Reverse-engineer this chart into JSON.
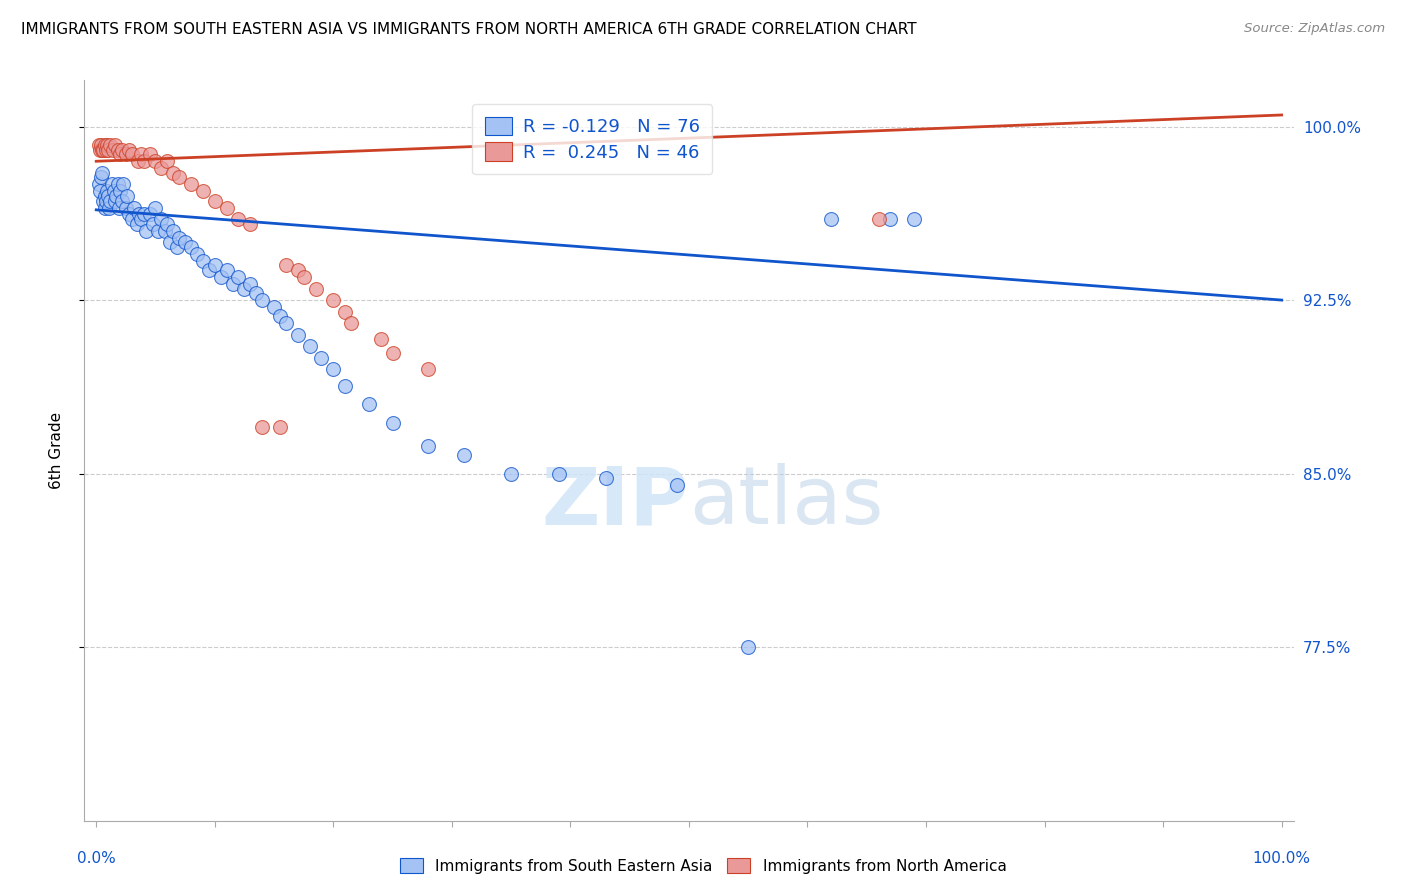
{
  "title": "IMMIGRANTS FROM SOUTH EASTERN ASIA VS IMMIGRANTS FROM NORTH AMERICA 6TH GRADE CORRELATION CHART",
  "source": "Source: ZipAtlas.com",
  "ylabel": "6th Grade",
  "ylim": [
    0.7,
    1.02
  ],
  "xlim": [
    -0.01,
    1.01
  ],
  "blue_color": "#a4c2f4",
  "pink_color": "#ea9999",
  "blue_line_color": "#1155cc",
  "pink_line_color": "#cc4125",
  "grid_color": "#cccccc",
  "watermark_color": "#d0e4f7",
  "blue_scatter_x": [
    0.002,
    0.003,
    0.004,
    0.005,
    0.006,
    0.007,
    0.007,
    0.008,
    0.009,
    0.01,
    0.011,
    0.012,
    0.013,
    0.015,
    0.016,
    0.017,
    0.018,
    0.019,
    0.02,
    0.022,
    0.023,
    0.025,
    0.026,
    0.028,
    0.03,
    0.032,
    0.034,
    0.036,
    0.038,
    0.04,
    0.042,
    0.045,
    0.048,
    0.05,
    0.052,
    0.055,
    0.058,
    0.06,
    0.062,
    0.065,
    0.068,
    0.07,
    0.075,
    0.08,
    0.085,
    0.09,
    0.095,
    0.1,
    0.105,
    0.11,
    0.115,
    0.12,
    0.125,
    0.13,
    0.135,
    0.14,
    0.15,
    0.155,
    0.16,
    0.17,
    0.18,
    0.19,
    0.2,
    0.21,
    0.23,
    0.25,
    0.28,
    0.31,
    0.35,
    0.39,
    0.43,
    0.49,
    0.55,
    0.62,
    0.67,
    0.69
  ],
  "blue_scatter_y": [
    0.975,
    0.972,
    0.978,
    0.98,
    0.968,
    0.97,
    0.965,
    0.968,
    0.972,
    0.97,
    0.965,
    0.968,
    0.975,
    0.972,
    0.968,
    0.97,
    0.975,
    0.965,
    0.972,
    0.968,
    0.975,
    0.965,
    0.97,
    0.962,
    0.96,
    0.965,
    0.958,
    0.962,
    0.96,
    0.962,
    0.955,
    0.962,
    0.958,
    0.965,
    0.955,
    0.96,
    0.955,
    0.958,
    0.95,
    0.955,
    0.948,
    0.952,
    0.95,
    0.948,
    0.945,
    0.942,
    0.938,
    0.94,
    0.935,
    0.938,
    0.932,
    0.935,
    0.93,
    0.932,
    0.928,
    0.925,
    0.922,
    0.918,
    0.915,
    0.91,
    0.905,
    0.9,
    0.895,
    0.888,
    0.88,
    0.872,
    0.862,
    0.858,
    0.85,
    0.85,
    0.848,
    0.845,
    0.775,
    0.96,
    0.96,
    0.96
  ],
  "pink_scatter_x": [
    0.002,
    0.003,
    0.004,
    0.005,
    0.006,
    0.007,
    0.008,
    0.009,
    0.01,
    0.012,
    0.014,
    0.016,
    0.018,
    0.02,
    0.022,
    0.025,
    0.028,
    0.03,
    0.035,
    0.038,
    0.04,
    0.045,
    0.05,
    0.055,
    0.06,
    0.065,
    0.07,
    0.08,
    0.09,
    0.1,
    0.11,
    0.12,
    0.13,
    0.14,
    0.155,
    0.16,
    0.17,
    0.175,
    0.185,
    0.2,
    0.21,
    0.215,
    0.24,
    0.25,
    0.28,
    0.66
  ],
  "pink_scatter_y": [
    0.992,
    0.99,
    0.992,
    0.99,
    0.99,
    0.992,
    0.99,
    0.992,
    0.99,
    0.992,
    0.99,
    0.992,
    0.99,
    0.988,
    0.99,
    0.988,
    0.99,
    0.988,
    0.985,
    0.988,
    0.985,
    0.988,
    0.985,
    0.982,
    0.985,
    0.98,
    0.978,
    0.975,
    0.972,
    0.968,
    0.965,
    0.96,
    0.958,
    0.87,
    0.87,
    0.94,
    0.938,
    0.935,
    0.93,
    0.925,
    0.92,
    0.915,
    0.908,
    0.902,
    0.895,
    0.96
  ],
  "blue_trend_x": [
    0.0,
    1.0
  ],
  "blue_trend_y": [
    0.964,
    0.925
  ],
  "pink_trend_x": [
    0.0,
    1.0
  ],
  "pink_trend_y": [
    0.985,
    1.005
  ],
  "yticks_right": [
    0.775,
    0.85,
    0.925,
    1.0
  ],
  "ytick_labels_right": [
    "77.5%",
    "85.0%",
    "92.5%",
    "100.0%"
  ]
}
